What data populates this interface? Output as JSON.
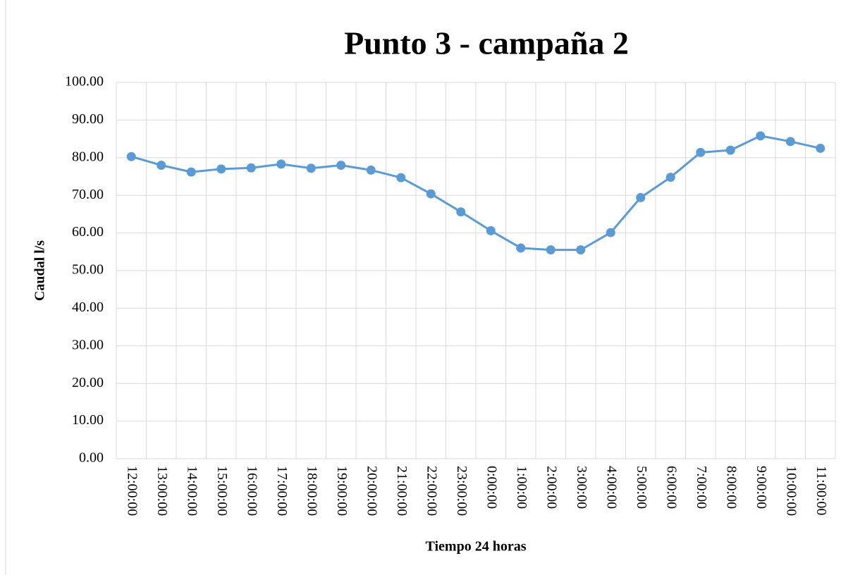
{
  "chart_data": {
    "type": "line",
    "title": "Punto 3 - campaña 2",
    "x_label": "Tiempo 24 horas",
    "y_label": "Caudal l/s",
    "categories": [
      "12:00:00",
      "13:00:00",
      "14:00:00",
      "15:00:00",
      "16:00:00",
      "17:00:00",
      "18:00:00",
      "19:00:00",
      "20:00:00",
      "21:00:00",
      "22:00:00",
      "23:00:00",
      "0:00:00",
      "1:00:00",
      "2:00:00",
      "3:00:00",
      "4:00:00",
      "5:00:00",
      "6:00:00",
      "7:00:00",
      "8:00:00",
      "9:00:00",
      "10:00:00",
      "11:00:00"
    ],
    "values": [
      80.3,
      78.0,
      76.2,
      77.0,
      77.3,
      78.3,
      77.2,
      78.0,
      76.7,
      74.7,
      70.4,
      65.6,
      60.6,
      56.0,
      55.5,
      55.5,
      60.1,
      69.4,
      74.8,
      81.4,
      82.0,
      85.8,
      84.3,
      82.5
    ],
    "color": "#5b9bd5",
    "ylim": [
      0,
      100
    ],
    "yticks": [
      {
        "value": 0,
        "label": "0.00"
      },
      {
        "value": 10,
        "label": "10.00"
      },
      {
        "value": 20,
        "label": "20.00"
      },
      {
        "value": 30,
        "label": "30.00"
      },
      {
        "value": 40,
        "label": "40.00"
      },
      {
        "value": 50,
        "label": "50.00"
      },
      {
        "value": 60,
        "label": "60.00"
      },
      {
        "value": 70,
        "label": "70.00"
      },
      {
        "value": 80,
        "label": "80.00"
      },
      {
        "value": 90,
        "label": "90.00"
      },
      {
        "value": 100,
        "label": "100.00"
      }
    ],
    "grid": true
  }
}
